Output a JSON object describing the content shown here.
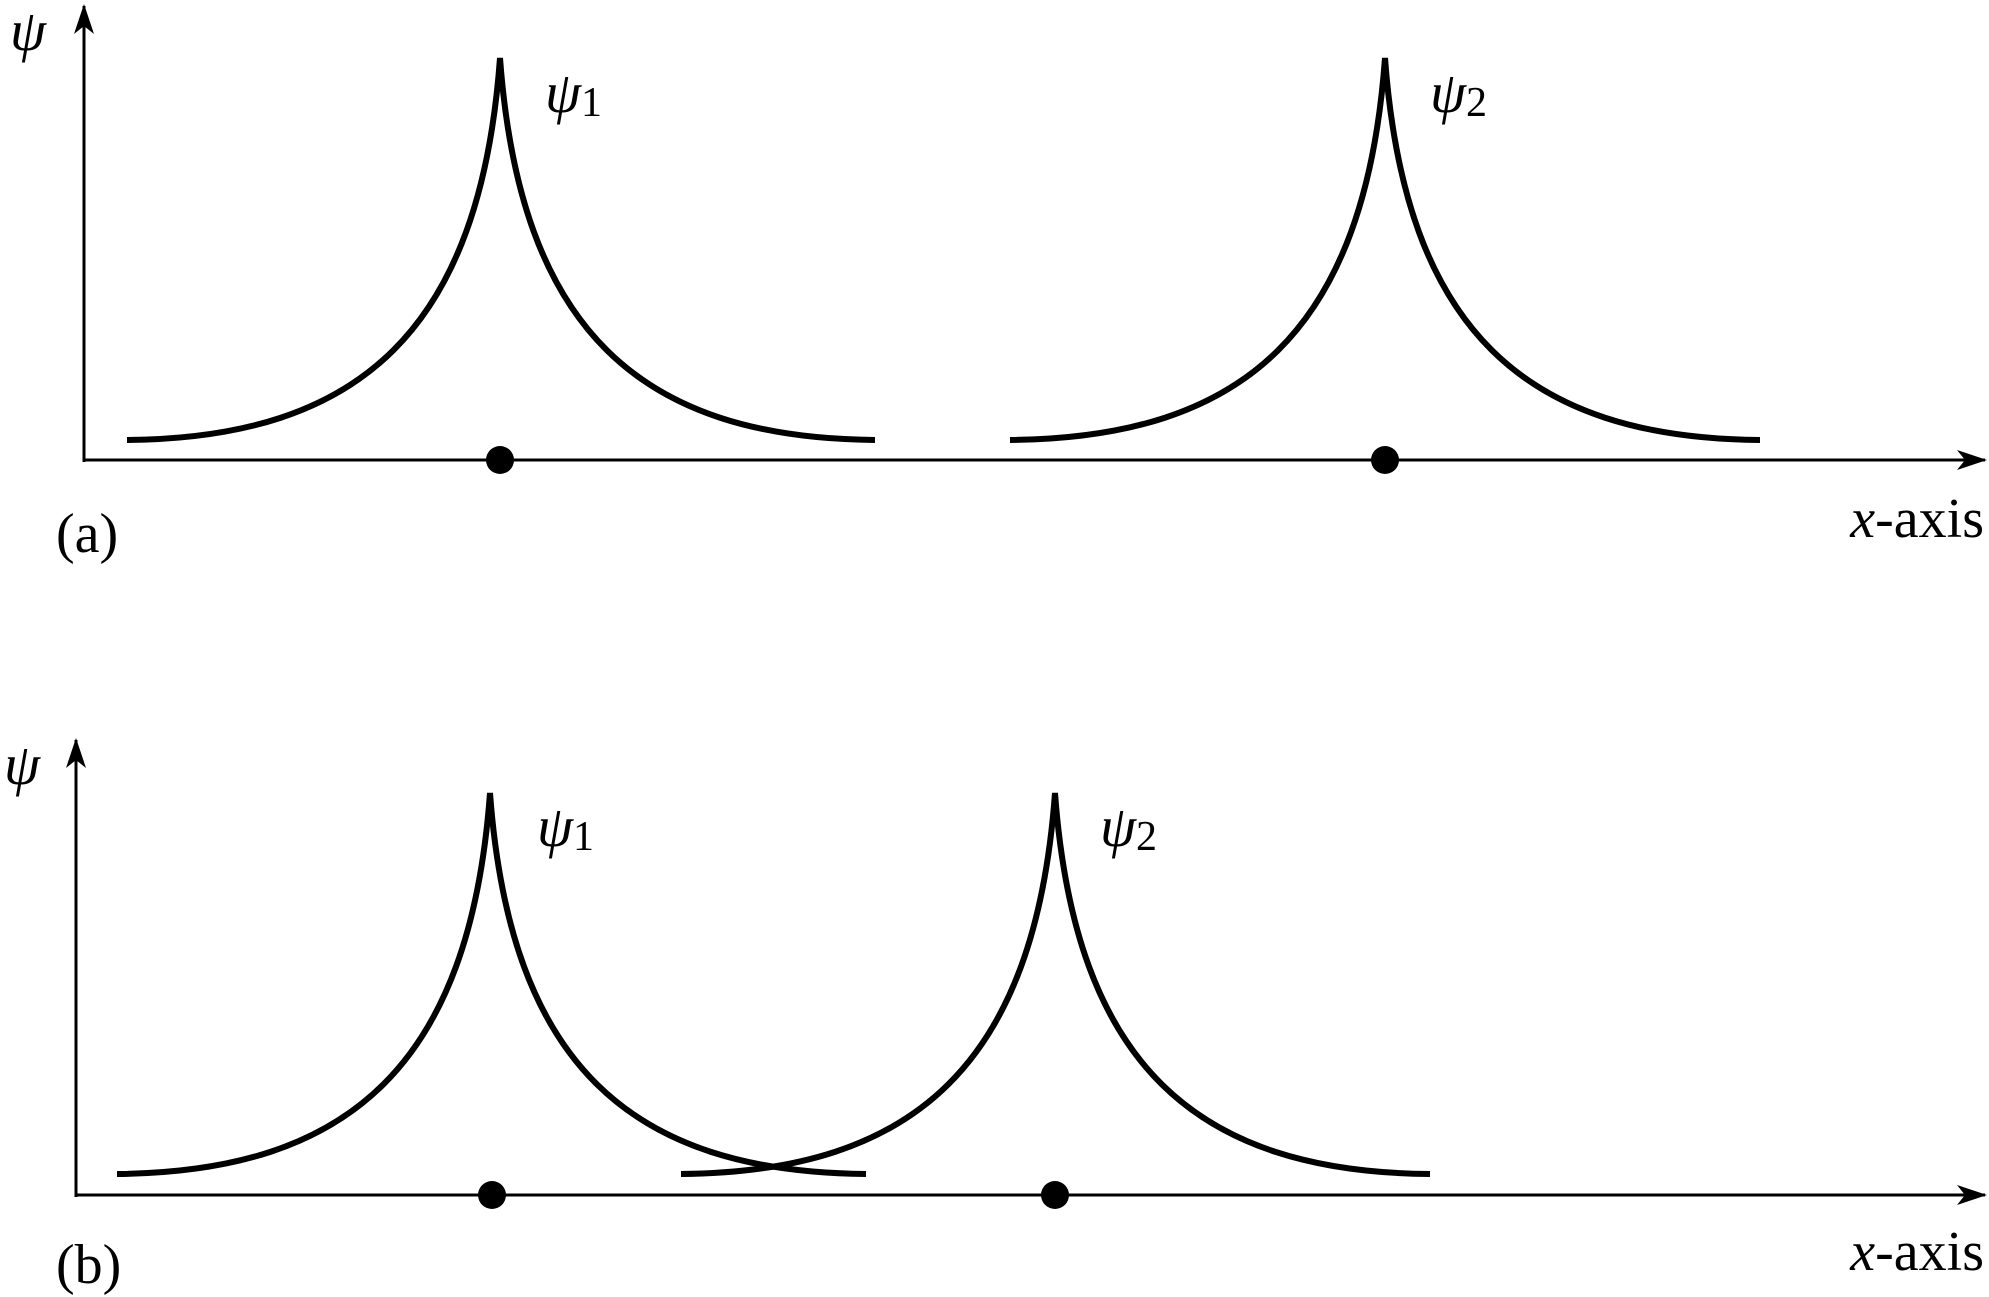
{
  "colors": {
    "ink": "#000000",
    "background": "#ffffff"
  },
  "panels": [
    {
      "id": "a",
      "label": "(a)",
      "y_axis_label": "ψ",
      "x_axis_label": {
        "var": "x",
        "rest": "-axis"
      },
      "curves": [
        {
          "symbol": "ψ",
          "subscript": "1"
        },
        {
          "symbol": "ψ",
          "subscript": "2"
        }
      ],
      "nuclei_count": 2
    },
    {
      "id": "b",
      "label": "(b)",
      "y_axis_label": "ψ",
      "x_axis_label": {
        "var": "x",
        "rest": "-axis"
      },
      "curves": [
        {
          "symbol": "ψ",
          "subscript": "1"
        },
        {
          "symbol": "ψ",
          "subscript": "2"
        }
      ],
      "nuclei_count": 2
    }
  ]
}
